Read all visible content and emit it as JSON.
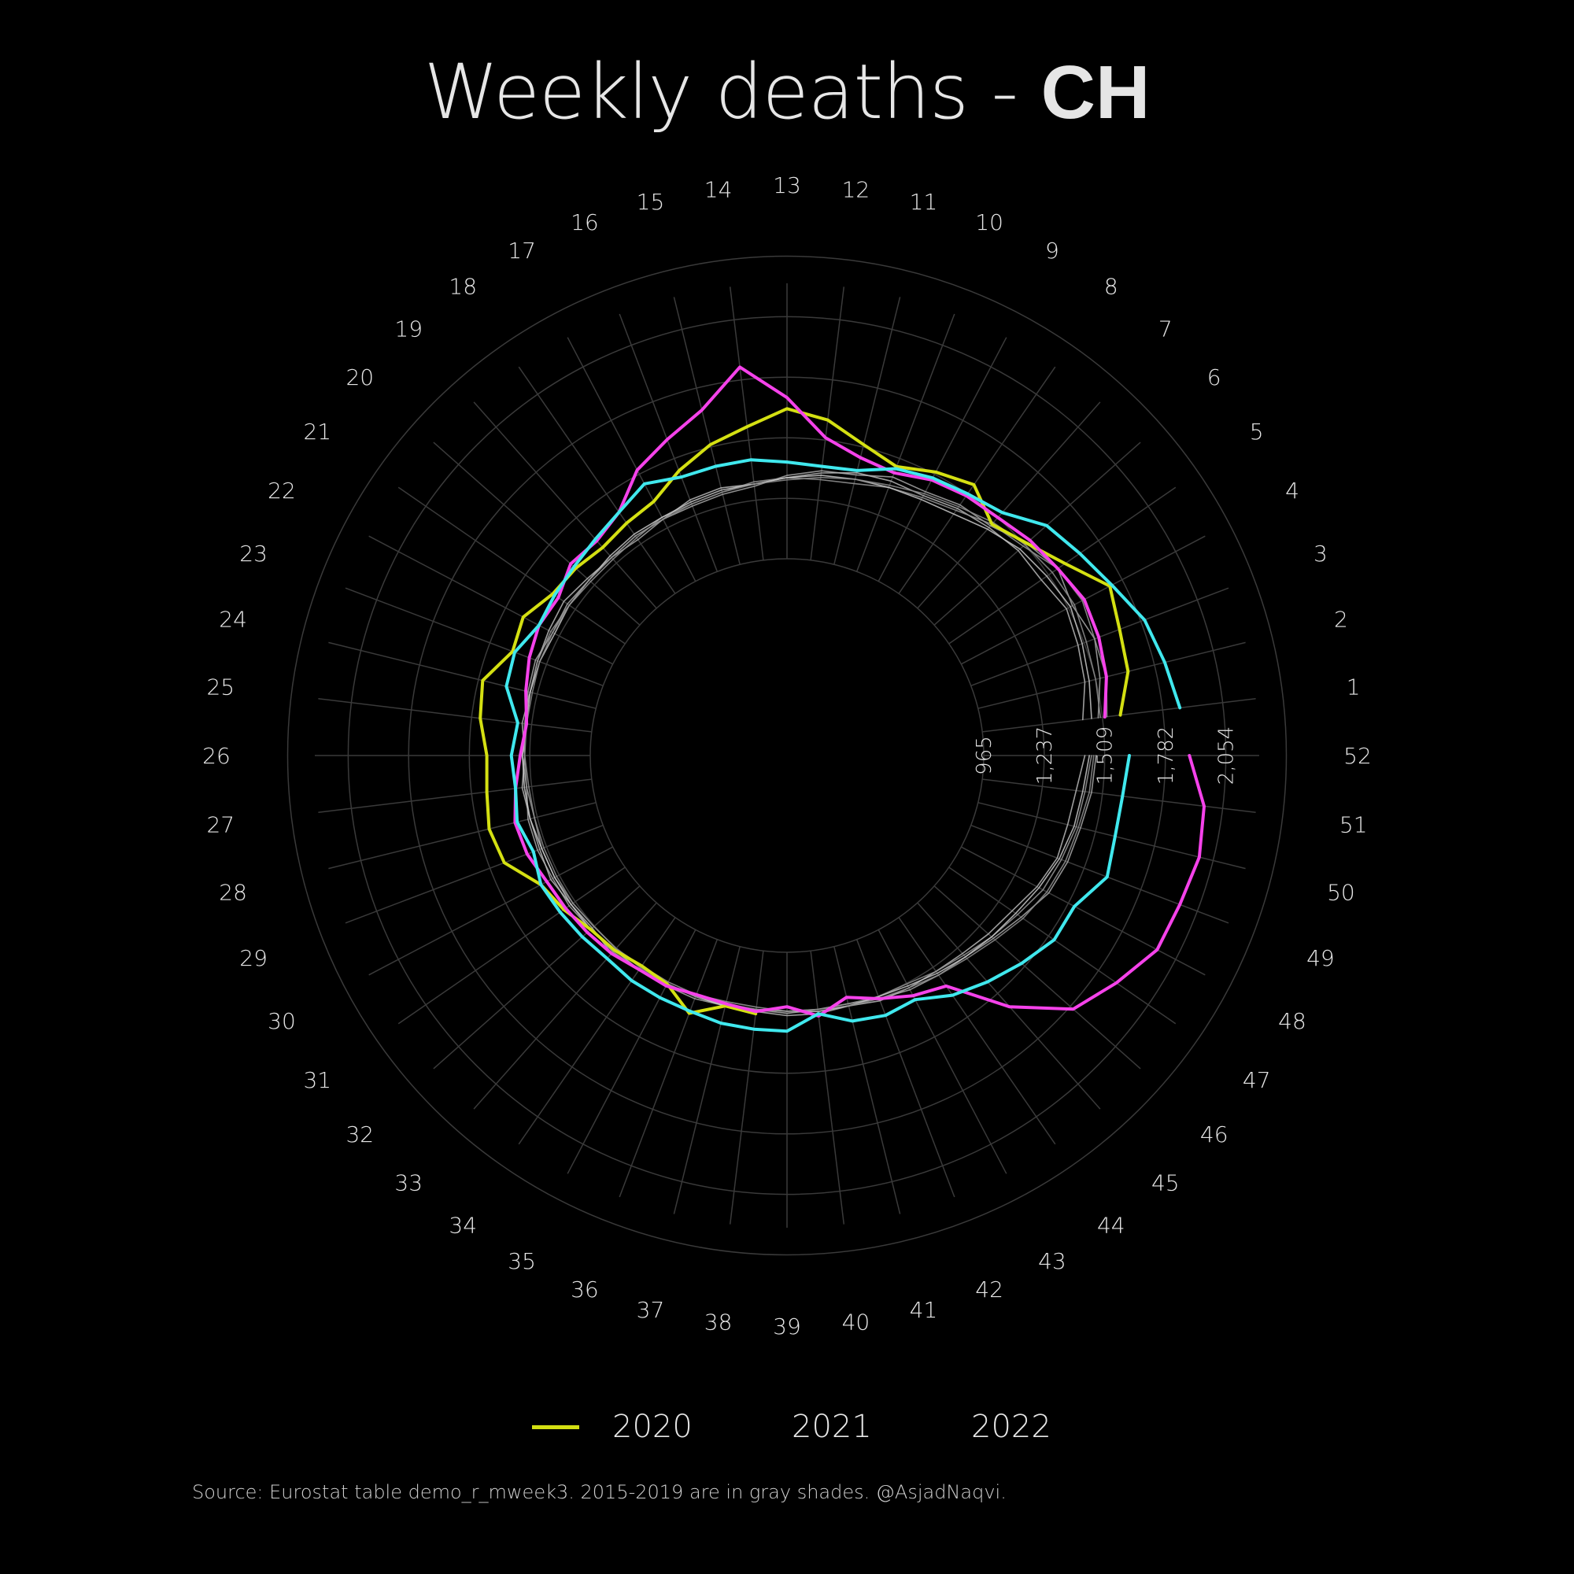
{
  "title": {
    "prefix": "Weekly deaths - ",
    "country": "CH"
  },
  "source": "Source: Eurostat table demo_r_mweek3. 2015-2019 are in gray shades. @AsjadNaqvi.",
  "legend": [
    {
      "label": "2020",
      "color": "#d4e012",
      "show_swatch": true
    },
    {
      "label": "2021",
      "color": "#f542ea",
      "show_swatch": false
    },
    {
      "label": "2022",
      "color": "#40e8ee",
      "show_swatch": false
    }
  ],
  "chart_data": {
    "type": "line",
    "coordinate_system": "polar",
    "title": "Weekly deaths - CH",
    "theta": "ISO week (1-52), clockwise, week 52 at right",
    "radial_ticks": [
      965,
      1237,
      1509,
      1782,
      2054
    ],
    "radial_tick_labels": [
      "965",
      "1,237",
      "1,509",
      "1,782",
      "2,054"
    ],
    "radial_range": [
      965,
      2054
    ],
    "weeks": [
      1,
      2,
      3,
      4,
      5,
      6,
      7,
      8,
      9,
      10,
      11,
      12,
      13,
      14,
      15,
      16,
      17,
      18,
      19,
      20,
      21,
      22,
      23,
      24,
      25,
      26,
      27,
      28,
      29,
      30,
      31,
      32,
      33,
      34,
      35,
      36,
      37,
      38,
      39,
      40,
      41,
      42,
      43,
      44,
      45,
      46,
      47,
      48,
      49,
      50,
      51,
      52
    ],
    "grid": true,
    "legend_position": "bottom",
    "series": [
      {
        "name": "2020",
        "color": "#d4e012",
        "width": 4,
        "values": [
          1590,
          1660,
          1680,
          1720,
          1600,
          1520,
          1470,
          1560,
          1520,
          1470,
          1520,
          1600,
          1640,
          1570,
          1520,
          1450,
          1370,
          1350,
          1330,
          1350,
          1360,
          1420,
          1400,
          1490,
          1470,
          1430,
          1440,
          1460,
          1440,
          1330,
          1300,
          1260,
          1250,
          1230,
          1240,
          1320,
          1240,
          1250,
          null,
          null,
          null,
          null,
          null,
          null,
          null,
          null,
          null,
          null,
          null,
          null,
          null,
          1640
        ]
      },
      {
        "name": "2021",
        "color": "#f542ea",
        "width": 4,
        "values": [
          1520,
          1560,
          1580,
          1590,
          1560,
          1540,
          1510,
          1500,
          1480,
          1440,
          1460,
          1520,
          1690,
          1840,
          1680,
          1600,
          1530,
          1410,
          1370,
          1380,
          1330,
          1340,
          1320,
          1290,
          1260,
          1280,
          1310,
          1340,
          1330,
          1300,
          1290,
          1280,
          1270,
          1250,
          1250,
          1230,
          1230,
          1240,
          1210,
          1260,
          1200,
          1250,
          1300,
          1340,
          1590,
          1800,
          1880,
          1960,
          1970,
          1990,
          1970,
          1890
        ]
      },
      {
        "name": "2022",
        "color": "#40e8ee",
        "width": 4,
        "values": [
          1860,
          1830,
          1800,
          1730,
          1680,
          1640,
          1540,
          1510,
          1490,
          1460,
          1400,
          1390,
          1400,
          1420,
          1420,
          1420,
          1460,
          1410,
          1380,
          1360,
          1350,
          1340,
          1390,
          1380,
          1300,
          1320,
          1310,
          1330,
          1300,
          1330,
          1320,
          1310,
          1300,
          1310,
          1310,
          1310,
          1320,
          1320,
          1320,
          1250,
          1310,
          1330,
          1320,
          1390,
          1440,
          1490,
          1540,
          1540,
          1620,
          1600,
          1600,
          1620
        ]
      },
      {
        "name": "",
        "color": "#a8a8a8",
        "width": 1.6,
        "values": [
          1490,
          1530,
          1560,
          1530,
          1560,
          1520,
          1460,
          1450,
          1420,
          1420,
          1380,
          1370,
          1340,
          1300,
          1290,
          1280,
          1280,
          1260,
          1270,
          1270,
          1280,
          1270,
          1290,
          1280,
          1260,
          1270,
          1260,
          1280,
          1280,
          1270,
          1270,
          1260,
          1260,
          1250,
          1250,
          1250,
          1240,
          1230,
          1240,
          1230,
          1230,
          1250,
          1270,
          1280,
          1290,
          1320,
          1360,
          1410,
          1430,
          1440,
          1460,
          1470
        ]
      },
      {
        "name": "",
        "color": "#b8b8b8",
        "width": 1.6,
        "values": [
          1420,
          1460,
          1480,
          1500,
          1470,
          1470,
          1450,
          1430,
          1400,
          1400,
          1390,
          1360,
          1330,
          1310,
          1320,
          1310,
          1280,
          1280,
          1270,
          1280,
          1300,
          1290,
          1280,
          1270,
          1280,
          1260,
          1280,
          1270,
          1270,
          1280,
          1260,
          1250,
          1270,
          1250,
          1240,
          1240,
          1240,
          1240,
          1250,
          1250,
          1240,
          1260,
          1260,
          1260,
          1270,
          1290,
          1310,
          1350,
          1380,
          1380,
          1390,
          1420
        ]
      },
      {
        "name": "",
        "color": "#969696",
        "width": 1.6,
        "values": [
          1530,
          1560,
          1560,
          1580,
          1560,
          1500,
          1470,
          1420,
          1390,
          1370,
          1340,
          1330,
          1330,
          1320,
          1300,
          1290,
          1290,
          1270,
          1260,
          1260,
          1270,
          1280,
          1280,
          1270,
          1270,
          1260,
          1260,
          1250,
          1260,
          1260,
          1250,
          1240,
          1240,
          1230,
          1230,
          1230,
          1220,
          1220,
          1230,
          1230,
          1230,
          1240,
          1240,
          1260,
          1280,
          1310,
          1340,
          1380,
          1400,
          1420,
          1430,
          1450
        ]
      },
      {
        "name": "",
        "color": "#c8c8c8",
        "width": 1.6,
        "values": [
          1460,
          1480,
          1500,
          1520,
          1500,
          1480,
          1440,
          1400,
          1380,
          1370,
          1360,
          1350,
          1330,
          1310,
          1310,
          1300,
          1290,
          1290,
          1280,
          1270,
          1270,
          1260,
          1270,
          1270,
          1260,
          1270,
          1270,
          1270,
          1260,
          1260,
          1260,
          1260,
          1250,
          1250,
          1240,
          1240,
          1240,
          1230,
          1230,
          1240,
          1240,
          1240,
          1250,
          1270,
          1290,
          1310,
          1330,
          1360,
          1390,
          1410,
          1420,
          1440
        ]
      },
      {
        "name": "",
        "color": "#8e8e8e",
        "width": 1.6,
        "values": [
          1500,
          1510,
          1520,
          1540,
          1530,
          1510,
          1480,
          1440,
          1410,
          1380,
          1360,
          1340,
          1320,
          1310,
          1300,
          1290,
          1280,
          1280,
          1270,
          1270,
          1270,
          1270,
          1270,
          1260,
          1260,
          1260,
          1250,
          1250,
          1250,
          1250,
          1250,
          1240,
          1240,
          1240,
          1240,
          1240,
          1230,
          1230,
          1230,
          1230,
          1240,
          1250,
          1260,
          1280,
          1300,
          1330,
          1370,
          1400,
          1420,
          1430,
          1450,
          1460
        ]
      }
    ]
  }
}
